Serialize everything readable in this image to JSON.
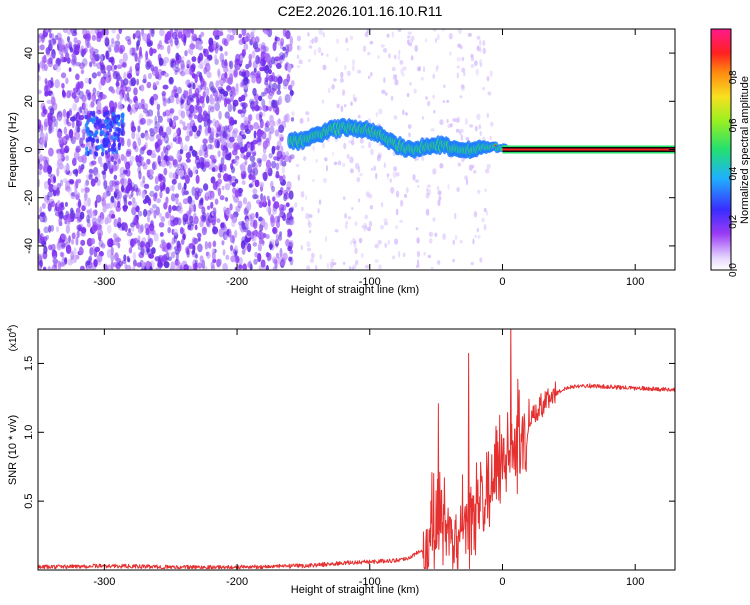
{
  "title": "C2E2.2026.101.16.10.R11",
  "chart_data": [
    {
      "type": "heatmap",
      "ylabel": "Frequency (Hz)",
      "xlabel": "Height of straight line (km)",
      "xlim": [
        -350,
        130
      ],
      "ylim": [
        -50,
        50
      ],
      "xticks": [
        -300,
        -200,
        -100,
        0,
        100
      ],
      "yticks": [
        -40,
        -20,
        0,
        20,
        40
      ],
      "colorbar": {
        "label": "Normalized spectral amplitude",
        "range": [
          0,
          1
        ],
        "ticks": [
          0.0,
          0.2,
          0.4,
          0.6,
          0.8
        ],
        "tick_labels": [
          "0.0",
          "0.2",
          "0.4",
          "0.6",
          "0.8"
        ]
      },
      "ridge": {
        "x": [
          -160,
          -150,
          -140,
          -130,
          -120,
          -110,
          -100,
          -90,
          -80,
          -70,
          -60,
          -50,
          -40,
          -30,
          -20,
          -10,
          0,
          130
        ],
        "freq": [
          3,
          4,
          6,
          8,
          9,
          9,
          8,
          5,
          2,
          0,
          1,
          2,
          1,
          0,
          0,
          1,
          1,
          0
        ]
      },
      "colors": {
        "noise": "#7b2cf0",
        "ridge_low": "#1f7dff",
        "ridge_mid": "#22e06a",
        "ridge_high": "#ff2020"
      }
    },
    {
      "type": "line",
      "ylabel": "SNR (10 * v/v)",
      "xlabel": "Height of straight line (km)",
      "multiplier_label": "(x10",
      "multiplier_exp": "4",
      "xlim": [
        -350,
        130
      ],
      "ylim": [
        0,
        1.75
      ],
      "xticks": [
        -300,
        -200,
        -100,
        0,
        100
      ],
      "yticks": [
        0.5,
        1.0,
        1.5
      ],
      "ytick_labels": [
        "0.5",
        "1.0",
        "1.5"
      ],
      "series": [
        {
          "color": "#e53030",
          "x": [
            -350,
            -300,
            -250,
            -200,
            -150,
            -120,
            -100,
            -80,
            -70,
            -60,
            -50,
            -45,
            -40,
            -35,
            -30,
            -20,
            -10,
            0,
            10,
            20,
            30,
            40,
            50,
            60,
            80,
            100,
            130
          ],
          "y": [
            0.02,
            0.03,
            0.02,
            0.02,
            0.03,
            0.05,
            0.06,
            0.07,
            0.09,
            0.15,
            0.35,
            0.45,
            0.3,
            0.15,
            0.25,
            0.5,
            0.65,
            0.8,
            0.9,
            1.05,
            1.2,
            1.28,
            1.33,
            1.34,
            1.33,
            1.32,
            1.31
          ]
        }
      ]
    }
  ]
}
